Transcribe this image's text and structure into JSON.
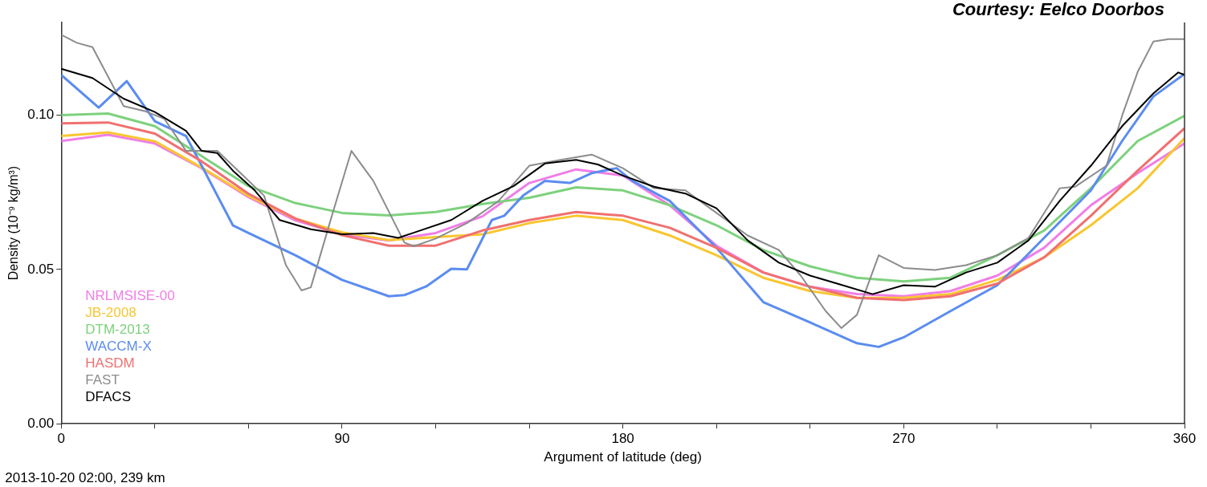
{
  "chart_data": {
    "type": "line",
    "xlabel": "Argument of latitude (deg)",
    "ylabel": "Density (10⁻⁹ kg/m³)",
    "xlim": [
      0,
      360
    ],
    "ylim": [
      0,
      0.13
    ],
    "xticks": [
      0,
      {
        "value": 30,
        "label": null
      },
      {
        "value": 60,
        "label": null
      },
      90,
      {
        "value": 120,
        "label": null
      },
      {
        "value": 150,
        "label": null
      },
      180,
      {
        "value": 210,
        "label": null
      },
      {
        "value": 240,
        "label": null
      },
      270,
      {
        "value": 300,
        "label": null
      },
      {
        "value": 330,
        "label": null
      },
      360
    ],
    "yticks": [
      {
        "value": 0,
        "label": "0.00"
      },
      {
        "value": 0.05,
        "label": "0.05"
      },
      {
        "value": 0.1,
        "label": "0.10"
      }
    ],
    "grid": false,
    "legend": "bottom left",
    "marker": "none",
    "line_style": "solid",
    "annotations": [
      "Courtesy: Eelco Doorbos",
      "2013-10-20 02:00, 239 km"
    ],
    "series": [
      {
        "name": "NRLMSISE-00",
        "color": "#f07ee6",
        "x": [
          0,
          15,
          30,
          45,
          60,
          75,
          90,
          105,
          120,
          135,
          150,
          165,
          180,
          195,
          210,
          225,
          240,
          255,
          270,
          285,
          300,
          315,
          330,
          345,
          360
        ],
        "values": [
          0.0916,
          0.0936,
          0.0908,
          0.0828,
          0.0734,
          0.0659,
          0.0614,
          0.0594,
          0.0618,
          0.0672,
          0.078,
          0.0824,
          0.0804,
          0.0708,
          0.0577,
          0.049,
          0.0444,
          0.042,
          0.0413,
          0.043,
          0.048,
          0.057,
          0.0708,
          0.0812,
          0.0908
        ]
      },
      {
        "name": "JB-2008",
        "color": "#f8c630",
        "x": [
          0,
          15,
          30,
          45,
          60,
          75,
          90,
          105,
          120,
          135,
          150,
          165,
          180,
          195,
          210,
          225,
          240,
          255,
          270,
          285,
          300,
          315,
          330,
          345,
          360
        ],
        "values": [
          0.0932,
          0.0944,
          0.0915,
          0.083,
          0.0738,
          0.0665,
          0.062,
          0.0595,
          0.0605,
          0.0614,
          0.065,
          0.0674,
          0.066,
          0.061,
          0.0546,
          0.0473,
          0.043,
          0.0408,
          0.0408,
          0.042,
          0.0466,
          0.0539,
          0.0643,
          0.0763,
          0.0925
        ]
      },
      {
        "name": "DTM-2013",
        "color": "#7dd17d",
        "x": [
          0,
          15,
          30,
          45,
          60,
          75,
          90,
          105,
          120,
          135,
          150,
          165,
          180,
          195,
          210,
          225,
          240,
          255,
          270,
          285,
          300,
          315,
          330,
          345,
          360
        ],
        "values": [
          0.1,
          0.1005,
          0.0964,
          0.0867,
          0.077,
          0.0715,
          0.0683,
          0.0675,
          0.0686,
          0.0712,
          0.0732,
          0.0766,
          0.0756,
          0.0708,
          0.0643,
          0.0563,
          0.051,
          0.0473,
          0.0461,
          0.0473,
          0.0546,
          0.0626,
          0.0763,
          0.0916,
          0.0998
        ]
      },
      {
        "name": "WACCM-X",
        "color": "#5b8cf0",
        "x": [
          0,
          12,
          21,
          30,
          40,
          45,
          55,
          60,
          75,
          90,
          105,
          110,
          117,
          125,
          130,
          138,
          142,
          148,
          155,
          163,
          170,
          178,
          183,
          195,
          210,
          225,
          240,
          255,
          262,
          270,
          285,
          300,
          315,
          330,
          340,
          350,
          360
        ],
        "values": [
          0.113,
          0.1024,
          0.111,
          0.098,
          0.0932,
          0.0836,
          0.0643,
          0.0618,
          0.0546,
          0.0466,
          0.0413,
          0.0417,
          0.0445,
          0.0502,
          0.05,
          0.066,
          0.0674,
          0.0739,
          0.0787,
          0.078,
          0.0812,
          0.0828,
          0.0787,
          0.0722,
          0.057,
          0.0394,
          0.0328,
          0.0261,
          0.0249,
          0.028,
          0.0365,
          0.0449,
          0.0602,
          0.0756,
          0.0916,
          0.106,
          0.1133
        ]
      },
      {
        "name": "HASDM",
        "color": "#f07070",
        "x": [
          0,
          15,
          30,
          45,
          60,
          75,
          90,
          105,
          120,
          135,
          150,
          165,
          180,
          195,
          210,
          225,
          240,
          255,
          270,
          285,
          300,
          315,
          330,
          345,
          360
        ],
        "values": [
          0.0973,
          0.0976,
          0.094,
          0.085,
          0.0745,
          0.0665,
          0.0611,
          0.0577,
          0.0577,
          0.0626,
          0.066,
          0.0686,
          0.0674,
          0.0635,
          0.057,
          0.049,
          0.0444,
          0.0408,
          0.0401,
          0.0413,
          0.0454,
          0.0539,
          0.0674,
          0.082,
          0.0957
        ]
      },
      {
        "name": "FAST",
        "color": "#8c8c8c",
        "x": [
          0,
          5,
          10,
          20,
          27,
          33,
          40,
          50,
          55,
          65,
          72,
          77,
          80,
          87,
          93,
          100,
          110,
          113,
          120,
          130,
          140,
          150,
          160,
          170,
          180,
          190,
          200,
          210,
          220,
          230,
          237,
          245,
          250,
          255,
          262,
          270,
          280,
          290,
          300,
          310,
          320,
          325,
          335,
          340,
          345,
          350,
          355,
          360
        ],
        "values": [
          0.126,
          0.1234,
          0.122,
          0.1029,
          0.1012,
          0.0988,
          0.0884,
          0.0884,
          0.0836,
          0.0739,
          0.0514,
          0.0432,
          0.0442,
          0.0683,
          0.0884,
          0.0787,
          0.0587,
          0.0575,
          0.06,
          0.065,
          0.072,
          0.0836,
          0.0855,
          0.0872,
          0.0828,
          0.0763,
          0.0756,
          0.0683,
          0.061,
          0.0563,
          0.048,
          0.0365,
          0.031,
          0.0353,
          0.0546,
          0.0505,
          0.0498,
          0.0514,
          0.0546,
          0.0602,
          0.0763,
          0.0768,
          0.0836,
          0.0998,
          0.114,
          0.1238,
          0.1246,
          0.1246
        ]
      },
      {
        "name": "DFACS",
        "color": "#000000",
        "x": [
          0,
          10,
          20,
          30,
          40,
          45,
          50,
          55,
          62,
          70,
          80,
          90,
          100,
          108,
          115,
          125,
          135,
          145,
          155,
          165,
          172,
          180,
          190,
          200,
          210,
          220,
          230,
          240,
          250,
          260,
          270,
          280,
          290,
          300,
          310,
          320,
          330,
          340,
          350,
          358,
          360
        ],
        "values": [
          0.115,
          0.112,
          0.1053,
          0.101,
          0.0949,
          0.0884,
          0.0877,
          0.082,
          0.0756,
          0.066,
          0.063,
          0.0614,
          0.0618,
          0.0602,
          0.0626,
          0.066,
          0.0722,
          0.077,
          0.0843,
          0.0855,
          0.084,
          0.0804,
          0.0768,
          0.0746,
          0.0698,
          0.0594,
          0.0522,
          0.048,
          0.045,
          0.042,
          0.0449,
          0.0444,
          0.049,
          0.0522,
          0.0594,
          0.0722,
          0.0836,
          0.0964,
          0.107,
          0.1138,
          0.113
        ]
      }
    ]
  }
}
